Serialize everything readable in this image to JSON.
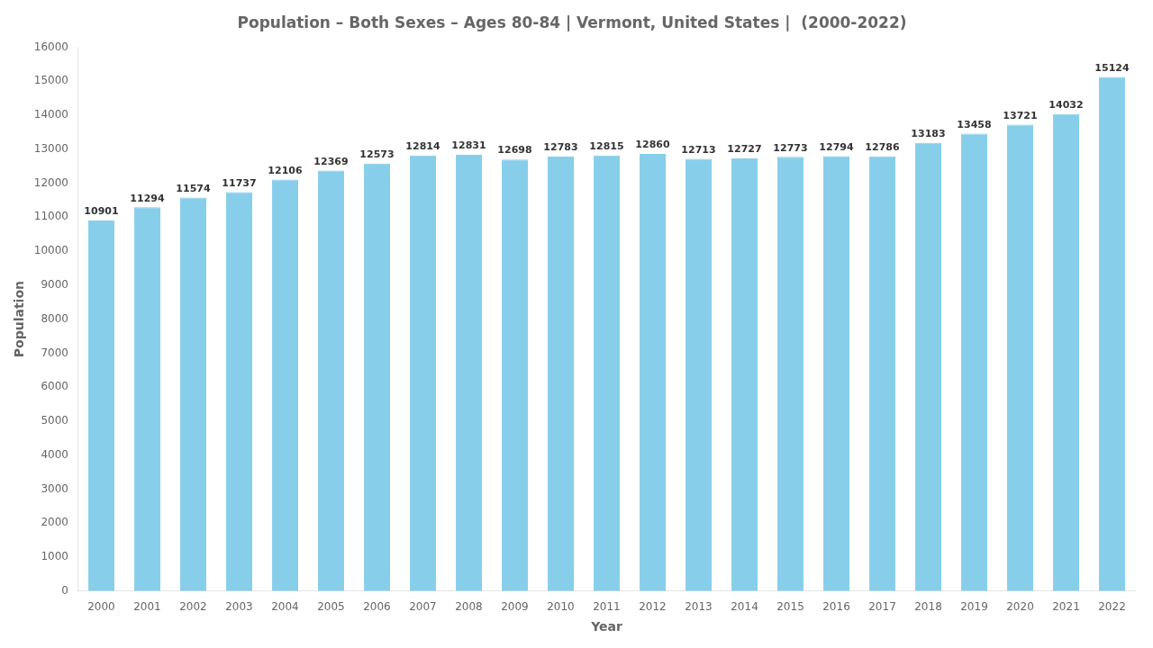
{
  "chart_data": {
    "type": "bar",
    "title": "Population – Both Sexes – Ages 80-84 | Vermont, United States |  (2000-2022)",
    "x_label": "Year",
    "y_label": "Population",
    "categories": [
      "2000",
      "2001",
      "2002",
      "2003",
      "2004",
      "2005",
      "2006",
      "2007",
      "2008",
      "2009",
      "2010",
      "2011",
      "2012",
      "2013",
      "2014",
      "2015",
      "2016",
      "2017",
      "2018",
      "2019",
      "2020",
      "2021",
      "2022"
    ],
    "values": [
      10901,
      11294,
      11574,
      11737,
      12106,
      12369,
      12573,
      12814,
      12831,
      12698,
      12783,
      12815,
      12860,
      12713,
      12727,
      12773,
      12794,
      12786,
      13183,
      13458,
      13721,
      14032,
      15124
    ],
    "color": "#87CEEB",
    "ylim": [
      0,
      16000
    ],
    "yticks": [
      0,
      1000,
      2000,
      3000,
      4000,
      5000,
      6000,
      7000,
      8000,
      9000,
      10000,
      11000,
      12000,
      13000,
      14000,
      15000,
      16000
    ],
    "grid": false,
    "data_labels": true
  }
}
